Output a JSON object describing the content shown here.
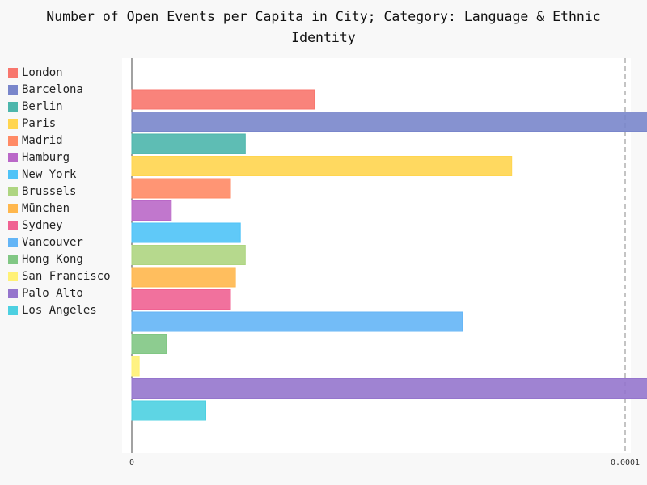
{
  "chart_data": {
    "type": "bar",
    "orientation": "horizontal",
    "title_lines": [
      "Number of Open Events per Capita in City; Category: Language & Ethnic",
      "Identity"
    ],
    "legend_position": "left",
    "grid": true,
    "xlim": [
      0,
      0.001
    ],
    "xticks": [
      "0",
      "0.0001",
      "0.0002",
      "0.0003",
      "0.0004",
      "0.0005",
      "0.0006",
      "0.0007",
      "0.0008",
      "0.0009"
    ],
    "series": [
      {
        "name": "London",
        "value": 3.7e-05,
        "color": "#f8766d"
      },
      {
        "name": "Barcelona",
        "value": 0.000124,
        "color": "#7986cb"
      },
      {
        "name": "Berlin",
        "value": 2.3e-05,
        "color": "#4db6ac"
      },
      {
        "name": "Paris",
        "value": 7.7e-05,
        "color": "#ffd54f"
      },
      {
        "name": "Madrid",
        "value": 2e-05,
        "color": "#ff8a65"
      },
      {
        "name": "Hamburg",
        "value": 8e-06,
        "color": "#ba68c8"
      },
      {
        "name": "New York",
        "value": 2.2e-05,
        "color": "#4fc3f7"
      },
      {
        "name": "Brussels",
        "value": 2.3e-05,
        "color": "#aed581"
      },
      {
        "name": "München",
        "value": 2.1e-05,
        "color": "#ffb74d"
      },
      {
        "name": "Sydney",
        "value": 2e-05,
        "color": "#f06292"
      },
      {
        "name": "Vancouver",
        "value": 6.7e-05,
        "color": "#64b5f6"
      },
      {
        "name": "Hong Kong",
        "value": 7e-06,
        "color": "#81c784"
      },
      {
        "name": "San Francisco",
        "value": 1.5e-06,
        "color": "#fff176"
      },
      {
        "name": "Palo Alto",
        "value": 0.00099,
        "color": "#9575cd"
      },
      {
        "name": "Los Angeles",
        "value": 1.5e-05,
        "color": "#4dd0e1"
      }
    ]
  }
}
